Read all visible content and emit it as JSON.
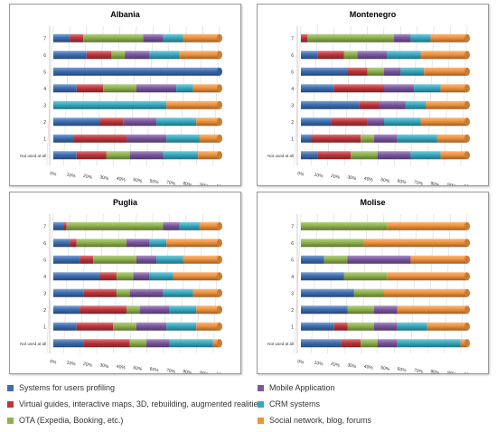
{
  "series": [
    {
      "key": "profiling",
      "name": "Systems for users profiling",
      "color": "#3c6db3"
    },
    {
      "key": "guides",
      "name": "Virtual guides, interactive maps, 3D, rebuilding, augmented realities",
      "color": "#c0353a"
    },
    {
      "key": "ota",
      "name": "OTA (Expedia, Booking, etc.)",
      "color": "#8db24a"
    },
    {
      "key": "mobile",
      "name": "Mobile Application",
      "color": "#7a56a0"
    },
    {
      "key": "crm",
      "name": "CRM systems",
      "color": "#35a9c1"
    },
    {
      "key": "social",
      "name": "Social network, blog, forums",
      "color": "#f0913a"
    }
  ],
  "chart_data": [
    {
      "type": "bar",
      "stacked": "100%",
      "title": "Albania",
      "categories": [
        "7",
        "6",
        "5",
        "4",
        "3",
        "2",
        "1",
        "Not used at all"
      ],
      "x_ticks": [
        "0%",
        "10%",
        "20%",
        "30%",
        "40%",
        "50%",
        "60%",
        "70%",
        "80%",
        "90%",
        "100%"
      ],
      "xlim": [
        0,
        100
      ],
      "series": [
        {
          "name": "Systems for users profiling",
          "values": [
            10,
            20,
            100,
            14,
            0,
            28,
            12,
            14
          ]
        },
        {
          "name": "Virtual guides, interactive maps, 3D, rebuilding, augmented realities",
          "values": [
            8,
            15,
            0,
            16,
            0,
            14,
            32,
            18
          ]
        },
        {
          "name": "OTA (Expedia, Booking, etc.)",
          "values": [
            36,
            8,
            0,
            20,
            0,
            0,
            0,
            14
          ]
        },
        {
          "name": "Mobile Application",
          "values": [
            12,
            15,
            0,
            24,
            0,
            20,
            24,
            20
          ]
        },
        {
          "name": "CRM systems",
          "values": [
            12,
            18,
            0,
            10,
            68,
            24,
            20,
            21
          ]
        },
        {
          "name": "Social network, blog, forums",
          "values": [
            22,
            24,
            0,
            16,
            32,
            14,
            12,
            13
          ]
        }
      ]
    },
    {
      "type": "bar",
      "stacked": "100%",
      "title": "Montenegro",
      "categories": [
        "7",
        "6",
        "5",
        "4",
        "3",
        "2",
        "1",
        "Not used at all"
      ],
      "x_ticks": [
        "0%",
        "10%",
        "20%",
        "30%",
        "40%",
        "50%",
        "60%",
        "70%",
        "80%",
        "90%",
        "100%"
      ],
      "xlim": [
        0,
        100
      ],
      "series": [
        {
          "name": "Systems for users profiling",
          "values": [
            0,
            10,
            28,
            20,
            35,
            18,
            6,
            10
          ]
        },
        {
          "name": "Virtual guides, interactive maps, 3D, rebuilding, augmented realities",
          "values": [
            4,
            16,
            12,
            30,
            12,
            22,
            30,
            20
          ]
        },
        {
          "name": "OTA (Expedia, Booking, etc.)",
          "values": [
            52,
            8,
            10,
            0,
            0,
            0,
            8,
            16
          ]
        },
        {
          "name": "Mobile Application",
          "values": [
            10,
            18,
            10,
            18,
            16,
            10,
            14,
            20
          ]
        },
        {
          "name": "CRM systems",
          "values": [
            12,
            20,
            14,
            16,
            12,
            22,
            24,
            18
          ]
        },
        {
          "name": "Social network, blog, forums",
          "values": [
            22,
            28,
            26,
            16,
            25,
            28,
            18,
            16
          ]
        }
      ]
    },
    {
      "type": "bar",
      "stacked": "100%",
      "title": "Puglia",
      "categories": [
        "7",
        "6",
        "5",
        "4",
        "3",
        "2",
        "1",
        "Not used at all"
      ],
      "x_ticks": [
        "0%",
        "10%",
        "20%",
        "30%",
        "40%",
        "50%",
        "60%",
        "70%",
        "80%",
        "90%",
        "100%"
      ],
      "xlim": [
        0,
        100
      ],
      "series": [
        {
          "name": "Systems for users profiling",
          "values": [
            6,
            10,
            16,
            28,
            18,
            16,
            14,
            18
          ]
        },
        {
          "name": "Virtual guides, interactive maps, 3D, rebuilding, augmented realities",
          "values": [
            2,
            4,
            8,
            10,
            20,
            28,
            22,
            28
          ]
        },
        {
          "name": "OTA (Expedia, Booking, etc.)",
          "values": [
            58,
            30,
            26,
            10,
            8,
            8,
            14,
            10
          ]
        },
        {
          "name": "Mobile Application",
          "values": [
            10,
            14,
            12,
            10,
            20,
            18,
            18,
            14
          ]
        },
        {
          "name": "CRM systems",
          "values": [
            12,
            10,
            16,
            14,
            18,
            16,
            18,
            26
          ]
        },
        {
          "name": "Social network, blog, forums",
          "values": [
            12,
            32,
            22,
            28,
            16,
            14,
            14,
            4
          ]
        }
      ]
    },
    {
      "type": "bar",
      "stacked": "100%",
      "title": "Molise",
      "categories": [
        "7",
        "6",
        "5",
        "4",
        "3",
        "2",
        "1",
        "Not used at all"
      ],
      "x_ticks": [
        "0%",
        "10%",
        "20%",
        "30%",
        "40%",
        "50%",
        "60%",
        "70%",
        "80%",
        "90%",
        "100%"
      ],
      "xlim": [
        0,
        100
      ],
      "series": [
        {
          "name": "Systems for users profiling",
          "values": [
            0,
            0,
            14,
            26,
            32,
            28,
            20,
            24
          ]
        },
        {
          "name": "Virtual guides, interactive maps, 3D, rebuilding, augmented realities",
          "values": [
            0,
            0,
            0,
            0,
            0,
            0,
            8,
            12
          ]
        },
        {
          "name": "OTA (Expedia, Booking, etc.)",
          "values": [
            52,
            38,
            14,
            26,
            18,
            16,
            16,
            10
          ]
        },
        {
          "name": "Mobile Application",
          "values": [
            0,
            0,
            38,
            0,
            0,
            14,
            14,
            12
          ]
        },
        {
          "name": "CRM systems",
          "values": [
            0,
            0,
            0,
            0,
            0,
            0,
            18,
            38
          ]
        },
        {
          "name": "Social network, blog, forums",
          "values": [
            48,
            62,
            34,
            48,
            50,
            42,
            24,
            4
          ]
        }
      ]
    }
  ]
}
